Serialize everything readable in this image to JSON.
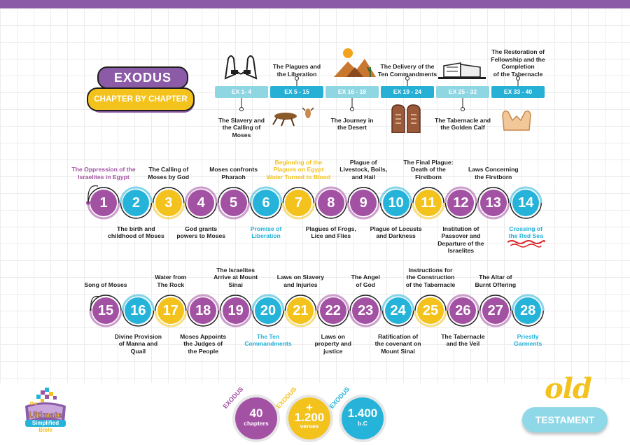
{
  "header": {
    "title": "EXODUS",
    "subtitle": "CHAPTER BY CHAPTER"
  },
  "overview": {
    "ranges": [
      {
        "label": "EX 1- 4",
        "top_text": "",
        "bottom_text": [
          "The Slavery and",
          "the Calling of",
          "Moses"
        ],
        "top_icon": "shackled-hands-icon",
        "bottom_icon": ""
      },
      {
        "label": "EX 5 - 15",
        "top_text": [
          "The Plagues and",
          "the Liberation"
        ],
        "bottom_text": "",
        "top_icon": "",
        "bottom_icon": "locust-icon"
      },
      {
        "label": "EX 16 - 18",
        "top_text": "",
        "bottom_text": [
          "The Journey in",
          "the Desert"
        ],
        "top_icon": "desert-icon",
        "bottom_icon": ""
      },
      {
        "label": "EX 19 - 24",
        "top_text": [
          "The Delivery of the",
          "Ten Commandments"
        ],
        "bottom_text": "",
        "top_icon": "",
        "bottom_icon": "stone-tablets-icon"
      },
      {
        "label": "EX 25 - 32",
        "top_text": "",
        "bottom_text": [
          "The Tabernacle and",
          "the Golden Calf"
        ],
        "top_icon": "tabernacle-icon",
        "bottom_icon": ""
      },
      {
        "label": "EX 33 - 40",
        "top_text": [
          "The Restoration of",
          "Fellowship and the",
          "Completion",
          "of the Tabernacle"
        ],
        "bottom_text": "",
        "top_icon": "",
        "bottom_icon": "praying-hands-icon"
      }
    ]
  },
  "chapters": [
    {
      "n": "1",
      "text": [
        "The Oppression of the",
        "Israelites in Egypt"
      ],
      "color": "p",
      "pos": "top",
      "tc": "pur"
    },
    {
      "n": "2",
      "text": [
        "The birth and",
        "childhood of Moses"
      ],
      "color": "b",
      "pos": "bottom",
      "tc": ""
    },
    {
      "n": "3",
      "text": [
        "The Calling of",
        "Moses by God"
      ],
      "color": "y",
      "pos": "top",
      "tc": ""
    },
    {
      "n": "4",
      "text": [
        "God grants",
        "powers to Moses"
      ],
      "color": "p",
      "pos": "bottom",
      "tc": ""
    },
    {
      "n": "5",
      "text": [
        "Moses confronts",
        "Pharaoh"
      ],
      "color": "p",
      "pos": "top",
      "tc": ""
    },
    {
      "n": "6",
      "text": [
        "Promise of",
        "Liberation"
      ],
      "color": "b",
      "pos": "bottom",
      "tc": "blu"
    },
    {
      "n": "7",
      "text": [
        "Beginning of the",
        "Plagues on Egypt",
        "Water Turned to Blood"
      ],
      "color": "y",
      "pos": "top",
      "tc": "yel"
    },
    {
      "n": "8",
      "text": [
        "Plagues of Frogs,",
        "Lice and Flies"
      ],
      "color": "p",
      "pos": "bottom",
      "tc": ""
    },
    {
      "n": "9",
      "text": [
        "Plague of",
        "Livestock, Boils,",
        "and Hail"
      ],
      "color": "p",
      "pos": "top",
      "tc": ""
    },
    {
      "n": "10",
      "text": [
        "Plague of Locusts",
        "and Darkness"
      ],
      "color": "b",
      "pos": "bottom",
      "tc": ""
    },
    {
      "n": "11",
      "text": [
        "The Final Plague:",
        "Death of the",
        "Firstborn"
      ],
      "color": "y",
      "pos": "top",
      "tc": ""
    },
    {
      "n": "12",
      "text": [
        "Institution of",
        "Passover and",
        "Departure of the",
        "Israelites"
      ],
      "color": "p",
      "pos": "bottom",
      "tc": ""
    },
    {
      "n": "13",
      "text": [
        "Laws Concerning",
        "the Firstborn"
      ],
      "color": "p",
      "pos": "top",
      "tc": ""
    },
    {
      "n": "14",
      "text": [
        "Crossing of",
        "the Red Sea"
      ],
      "color": "b",
      "pos": "bottom",
      "tc": "blu"
    },
    {
      "n": "15",
      "text": [
        "Song of Moses"
      ],
      "color": "p",
      "pos": "top",
      "tc": ""
    },
    {
      "n": "16",
      "text": [
        "Divine Provision",
        "of Manna and",
        "Quail"
      ],
      "color": "b",
      "pos": "bottom",
      "tc": ""
    },
    {
      "n": "17",
      "text": [
        "Water from",
        "The Rock"
      ],
      "color": "y",
      "pos": "top",
      "tc": ""
    },
    {
      "n": "18",
      "text": [
        "Moses Appoints",
        "the Judges of",
        "the People"
      ],
      "color": "p",
      "pos": "bottom",
      "tc": ""
    },
    {
      "n": "19",
      "text": [
        "The Israelites",
        "Arrive at Mount",
        "Sinai"
      ],
      "color": "p",
      "pos": "top",
      "tc": ""
    },
    {
      "n": "20",
      "text": [
        "The Ten",
        "Commandments"
      ],
      "color": "b",
      "pos": "bottom",
      "tc": "blu"
    },
    {
      "n": "21",
      "text": [
        "Laws on Slavery",
        "and Injuries"
      ],
      "color": "y",
      "pos": "top",
      "tc": ""
    },
    {
      "n": "22",
      "text": [
        "Laws on",
        "property and",
        "justice"
      ],
      "color": "p",
      "pos": "bottom",
      "tc": ""
    },
    {
      "n": "23",
      "text": [
        "The Angel",
        "of God"
      ],
      "color": "p",
      "pos": "top",
      "tc": ""
    },
    {
      "n": "24",
      "text": [
        "Ratification of",
        "the covenant on",
        "Mount Sinai"
      ],
      "color": "b",
      "pos": "bottom",
      "tc": ""
    },
    {
      "n": "25",
      "text": [
        "Instructions for",
        "the Construction",
        "of the Tabernacle"
      ],
      "color": "y",
      "pos": "top",
      "tc": ""
    },
    {
      "n": "26",
      "text": [
        "The Tabernacle",
        "and the Veil"
      ],
      "color": "p",
      "pos": "bottom",
      "tc": ""
    },
    {
      "n": "27",
      "text": [
        "The Altar of",
        "Burnt Offering"
      ],
      "color": "p",
      "pos": "top",
      "tc": ""
    },
    {
      "n": "28",
      "text": [
        "Priestly",
        "Garments"
      ],
      "color": "b",
      "pos": "bottom",
      "tc": "blu"
    }
  ],
  "stats": [
    {
      "tag": "EXODUS",
      "big": "40",
      "small": "chapters",
      "color": "#a251a3"
    },
    {
      "tag": "EXODUS",
      "big": "+\n1.200",
      "small": "verses",
      "color": "#f3c21c"
    },
    {
      "tag": "EXODUS",
      "big": "1.400",
      "small": "b.C",
      "color": "#25b3d9"
    }
  ],
  "logo": {
    "line1": "the",
    "line2": "Ultimate",
    "line3": "Simplified",
    "line4": "Bible"
  },
  "footer": {
    "old": "old",
    "testament": "TESTAMENT"
  },
  "colors": {
    "purple": "#a251a3",
    "yellow": "#f3c21c",
    "blue": "#25b3d9",
    "light_blue": "#8fd6e3"
  }
}
